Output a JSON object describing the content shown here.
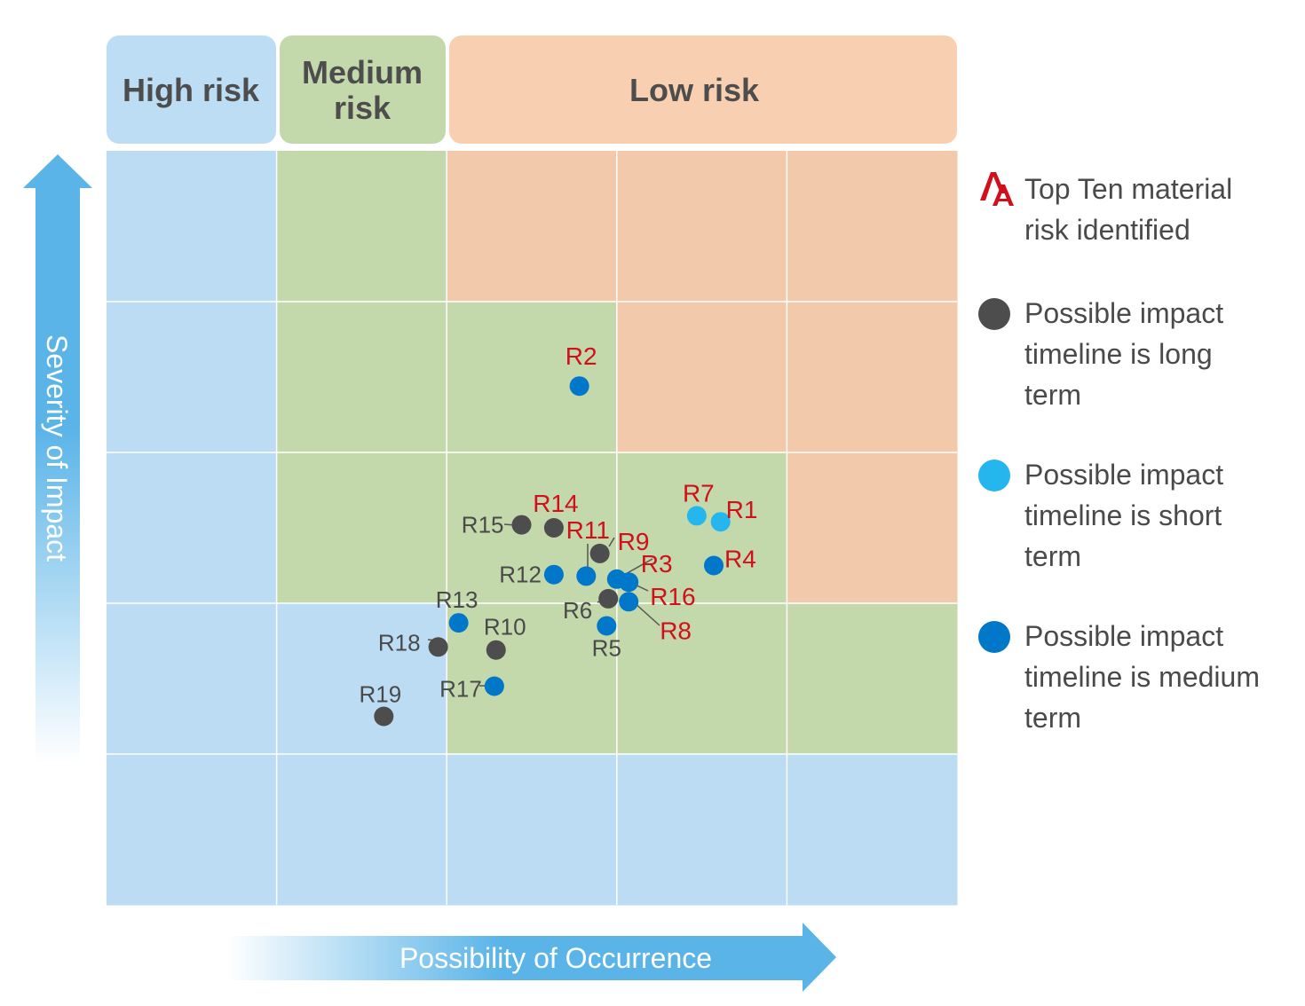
{
  "headers": [
    {
      "label_lines": [
        "High risk"
      ],
      "color": "#bdddf4"
    },
    {
      "label_lines": [
        "Medium",
        "risk"
      ],
      "color": "#c4d9ab"
    },
    {
      "label_lines": [
        "Low risk"
      ],
      "color": "#f8cfb0"
    }
  ],
  "colors": {
    "blue_zone": "#bcdcf4",
    "green_zone": "#c3d8ab",
    "orange_zone": "#f2c9aa",
    "long_term": "#4d4d4d",
    "short_term": "#26b6ee",
    "medium_term": "#0077c8",
    "top_ten_label": "#d0101b",
    "normal_label": "#4a4a4a",
    "axis_arrow": "#5ab4e8"
  },
  "axes": {
    "y_label": "Severity of Impact",
    "x_label": "Possibility of Occurrence"
  },
  "legend": {
    "items": [
      {
        "icon": "top-ten-aa-icon",
        "lines": [
          "Top Ten material",
          "risk identified"
        ]
      },
      {
        "icon": "long-term-dot",
        "lines": [
          "Possible impact",
          "timeline is long",
          "term"
        ]
      },
      {
        "icon": "short-term-dot",
        "lines": [
          "Possible impact",
          "timeline is short",
          "term"
        ]
      },
      {
        "icon": "medium-term-dot",
        "lines": [
          "Possible impact",
          "timeline is medium",
          "term"
        ]
      }
    ]
  },
  "chart_data": {
    "type": "scatter",
    "grid": true,
    "x_range": [
      0,
      5
    ],
    "y_range": [
      0,
      5
    ],
    "zones": [
      [
        "blue",
        "green",
        "orange",
        "orange",
        "orange"
      ],
      [
        "blue",
        "green",
        "green",
        "orange",
        "orange"
      ],
      [
        "blue",
        "green",
        "green",
        "green",
        "orange"
      ],
      [
        "blue",
        "blue",
        "green",
        "green",
        "green"
      ],
      [
        "blue",
        "blue",
        "blue",
        "blue",
        "blue"
      ]
    ],
    "points": [
      {
        "id": "R2",
        "x": 2.78,
        "y": 3.44,
        "term": "medium",
        "top_ten": true
      },
      {
        "id": "R7",
        "x": 3.47,
        "y": 2.58,
        "term": "short",
        "top_ten": true
      },
      {
        "id": "R1",
        "x": 3.61,
        "y": 2.54,
        "term": "short",
        "top_ten": true
      },
      {
        "id": "R4",
        "x": 3.57,
        "y": 2.25,
        "term": "medium",
        "top_ten": true
      },
      {
        "id": "R14",
        "x": 2.63,
        "y": 2.5,
        "term": "long",
        "top_ten": true
      },
      {
        "id": "R15",
        "x": 2.44,
        "y": 2.52,
        "term": "long",
        "top_ten": false
      },
      {
        "id": "R11",
        "x": 2.82,
        "y": 2.18,
        "term": "medium",
        "top_ten": true
      },
      {
        "id": "R9",
        "x": 2.9,
        "y": 2.33,
        "term": "long",
        "top_ten": true
      },
      {
        "id": "R3",
        "x": 3.0,
        "y": 2.16,
        "term": "medium",
        "top_ten": true
      },
      {
        "id": "R16",
        "x": 3.07,
        "y": 2.14,
        "term": "medium",
        "top_ten": true
      },
      {
        "id": "R12",
        "x": 2.63,
        "y": 2.19,
        "term": "medium",
        "top_ten": false
      },
      {
        "id": "R6",
        "x": 2.95,
        "y": 2.03,
        "term": "long",
        "top_ten": false
      },
      {
        "id": "R8",
        "x": 3.07,
        "y": 2.01,
        "term": "medium",
        "top_ten": true
      },
      {
        "id": "R5",
        "x": 2.94,
        "y": 1.85,
        "term": "medium",
        "top_ten": false
      },
      {
        "id": "R13",
        "x": 2.07,
        "y": 1.87,
        "term": "medium",
        "top_ten": false
      },
      {
        "id": "R18",
        "x": 1.95,
        "y": 1.71,
        "term": "long",
        "top_ten": false
      },
      {
        "id": "R10",
        "x": 2.29,
        "y": 1.69,
        "term": "long",
        "top_ten": false
      },
      {
        "id": "R17",
        "x": 2.28,
        "y": 1.45,
        "term": "medium",
        "top_ten": false
      },
      {
        "id": "R19",
        "x": 1.63,
        "y": 1.25,
        "term": "long",
        "top_ten": false
      }
    ]
  }
}
